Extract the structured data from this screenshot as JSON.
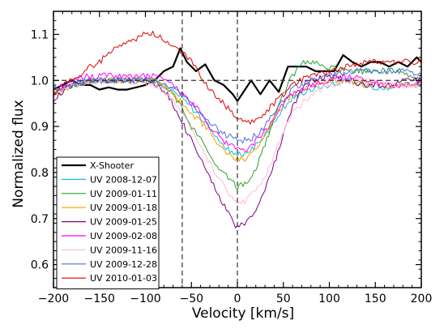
{
  "chart_data": {
    "type": "line",
    "xlabel": "Velocity [km/s]",
    "ylabel": "Normalized flux",
    "xlim": [
      -200,
      200
    ],
    "ylim": [
      0.55,
      1.15
    ],
    "xticks": [
      -200,
      -150,
      -100,
      -50,
      0,
      50,
      100,
      150,
      200
    ],
    "yticks": [
      0.6,
      0.7,
      0.8,
      0.9,
      1.0,
      1.1
    ],
    "ytick_labels": [
      "0.6",
      "0.7",
      "0.8",
      "0.9",
      "1.0",
      "1.1"
    ],
    "legend_position": "lower-left",
    "reference_lines": {
      "horizontal_y": 1.0,
      "vertical_x": [
        -60,
        0
      ]
    },
    "series": [
      {
        "name": "X-Shooter",
        "color": "#000000",
        "x": [
          -200,
          -190,
          -180,
          -170,
          -160,
          -150,
          -140,
          -130,
          -120,
          -110,
          -100,
          -90,
          -80,
          -70,
          -62,
          -55,
          -45,
          -35,
          -25,
          -15,
          -5,
          0,
          5,
          15,
          25,
          35,
          45,
          55,
          65,
          75,
          85,
          95,
          105,
          115,
          125,
          135,
          145,
          155,
          165,
          175,
          185,
          195,
          200
        ],
        "y": [
          0.98,
          0.99,
          1.0,
          0.99,
          0.99,
          0.98,
          0.985,
          0.98,
          0.98,
          0.985,
          0.99,
          1.0,
          1.02,
          1.03,
          1.07,
          1.04,
          1.02,
          1.035,
          1.0,
          0.99,
          0.97,
          0.955,
          0.97,
          1.0,
          0.97,
          1.0,
          0.975,
          1.03,
          1.03,
          1.03,
          1.02,
          1.02,
          1.02,
          1.055,
          1.04,
          1.03,
          1.04,
          1.04,
          1.03,
          1.04,
          1.03,
          1.05,
          1.04
        ]
      },
      {
        "name": "UV 2008-12-07",
        "color": "#17becf",
        "x": [
          -200,
          -180,
          -160,
          -140,
          -120,
          -100,
          -90,
          -80,
          -70,
          -60,
          -50,
          -40,
          -30,
          -20,
          -10,
          0,
          10,
          20,
          30,
          40,
          50,
          60,
          80,
          100,
          120,
          140,
          160,
          180,
          200
        ],
        "y": [
          0.98,
          0.99,
          1.0,
          1.0,
          1.0,
          1.0,
          1.0,
          0.99,
          0.98,
          0.96,
          0.94,
          0.92,
          0.895,
          0.87,
          0.85,
          0.84,
          0.84,
          0.86,
          0.88,
          0.91,
          0.94,
          0.96,
          0.98,
          0.99,
          1.0,
          0.99,
          0.98,
          0.99,
          0.99
        ]
      },
      {
        "name": "UV 2009-01-11",
        "color": "#2ca02c",
        "x": [
          -200,
          -180,
          -160,
          -140,
          -120,
          -100,
          -90,
          -80,
          -70,
          -60,
          -50,
          -40,
          -30,
          -20,
          -10,
          0,
          10,
          20,
          30,
          40,
          50,
          60,
          70,
          80,
          100,
          120,
          140,
          160,
          180,
          200
        ],
        "y": [
          0.97,
          0.99,
          1.0,
          1.0,
          1.0,
          1.0,
          1.0,
          0.99,
          0.97,
          0.94,
          0.9,
          0.87,
          0.84,
          0.81,
          0.79,
          0.77,
          0.78,
          0.81,
          0.86,
          0.92,
          0.97,
          1.01,
          1.04,
          1.04,
          1.03,
          1.02,
          1.02,
          1.02,
          1.02,
          1.0
        ]
      },
      {
        "name": "UV 2009-01-18",
        "color": "#ff9900",
        "x": [
          -200,
          -180,
          -160,
          -140,
          -120,
          -100,
          -90,
          -80,
          -70,
          -60,
          -50,
          -40,
          -30,
          -20,
          -10,
          0,
          10,
          20,
          30,
          40,
          50,
          60,
          80,
          100,
          120,
          140,
          160,
          180,
          200
        ],
        "y": [
          0.97,
          0.99,
          1.0,
          1.0,
          1.0,
          1.0,
          1.0,
          0.99,
          0.97,
          0.95,
          0.93,
          0.91,
          0.89,
          0.86,
          0.84,
          0.83,
          0.83,
          0.85,
          0.88,
          0.92,
          0.95,
          0.97,
          0.99,
          1.0,
          1.0,
          0.99,
          0.99,
          0.99,
          0.99
        ]
      },
      {
        "name": "UV 2009-01-25",
        "color": "#7f007f",
        "x": [
          -200,
          -180,
          -160,
          -140,
          -120,
          -100,
          -90,
          -80,
          -70,
          -60,
          -50,
          -40,
          -30,
          -20,
          -10,
          0,
          10,
          20,
          30,
          40,
          50,
          60,
          70,
          80,
          100,
          120,
          140,
          160,
          180,
          200
        ],
        "y": [
          0.96,
          0.99,
          1.0,
          1.0,
          1.0,
          1.0,
          0.99,
          0.98,
          0.95,
          0.91,
          0.87,
          0.83,
          0.79,
          0.75,
          0.71,
          0.68,
          0.69,
          0.72,
          0.76,
          0.82,
          0.88,
          0.94,
          0.98,
          1.0,
          1.01,
          1.0,
          0.99,
          0.99,
          1.0,
          1.0
        ]
      },
      {
        "name": "UV 2009-02-08",
        "color": "#ff00ff",
        "x": [
          -200,
          -180,
          -160,
          -140,
          -120,
          -100,
          -90,
          -80,
          -70,
          -60,
          -50,
          -40,
          -30,
          -20,
          -10,
          0,
          10,
          20,
          30,
          40,
          50,
          60,
          80,
          100,
          120,
          140,
          160,
          180,
          200
        ],
        "y": [
          0.98,
          1.0,
          1.01,
          1.01,
          1.01,
          1.01,
          1.01,
          1.0,
          0.99,
          0.97,
          0.95,
          0.93,
          0.9,
          0.88,
          0.86,
          0.85,
          0.85,
          0.87,
          0.89,
          0.92,
          0.95,
          0.97,
          0.99,
          1.0,
          1.01,
          1.0,
          0.99,
          0.99,
          1.0
        ]
      },
      {
        "name": "UV 2009-11-16",
        "color": "#ffbbd6",
        "x": [
          -200,
          -180,
          -160,
          -140,
          -120,
          -100,
          -90,
          -80,
          -70,
          -60,
          -50,
          -40,
          -30,
          -20,
          -10,
          0,
          10,
          20,
          30,
          40,
          50,
          60,
          80,
          100,
          120,
          140,
          160,
          180,
          200
        ],
        "y": [
          0.97,
          0.99,
          1.0,
          1.0,
          1.0,
          0.99,
          0.99,
          0.98,
          0.96,
          0.93,
          0.9,
          0.86,
          0.82,
          0.79,
          0.75,
          0.73,
          0.74,
          0.76,
          0.79,
          0.84,
          0.89,
          0.93,
          0.97,
          0.99,
          1.0,
          1.0,
          0.99,
          0.99,
          0.99
        ]
      },
      {
        "name": "UV 2009-12-28",
        "color": "#4a6fe3",
        "x": [
          -200,
          -180,
          -160,
          -140,
          -120,
          -100,
          -90,
          -80,
          -70,
          -60,
          -50,
          -40,
          -30,
          -20,
          -10,
          0,
          10,
          20,
          30,
          40,
          50,
          60,
          80,
          100,
          120,
          140,
          160,
          180,
          200
        ],
        "y": [
          0.98,
          0.99,
          1.0,
          1.0,
          1.0,
          1.0,
          1.0,
          0.99,
          0.98,
          0.97,
          0.95,
          0.93,
          0.91,
          0.89,
          0.88,
          0.87,
          0.87,
          0.88,
          0.9,
          0.93,
          0.96,
          0.98,
          1.0,
          1.01,
          1.02,
          1.02,
          1.02,
          1.02,
          1.01
        ]
      },
      {
        "name": "UV 2010-01-03",
        "color": "#e00000",
        "x": [
          -200,
          -190,
          -180,
          -170,
          -160,
          -150,
          -140,
          -130,
          -120,
          -110,
          -100,
          -90,
          -80,
          -70,
          -60,
          -50,
          -40,
          -30,
          -20,
          -10,
          0,
          10,
          20,
          30,
          40,
          50,
          60,
          80,
          100,
          120,
          140,
          160,
          180,
          200
        ],
        "y": [
          0.97,
          0.99,
          1.0,
          1.01,
          1.03,
          1.04,
          1.06,
          1.07,
          1.08,
          1.09,
          1.1,
          1.1,
          1.09,
          1.08,
          1.06,
          1.04,
          1.01,
          0.98,
          0.96,
          0.94,
          0.92,
          0.91,
          0.91,
          0.93,
          0.95,
          0.97,
          0.99,
          1.01,
          1.02,
          1.03,
          1.04,
          1.04,
          1.04,
          1.04
        ]
      }
    ]
  }
}
